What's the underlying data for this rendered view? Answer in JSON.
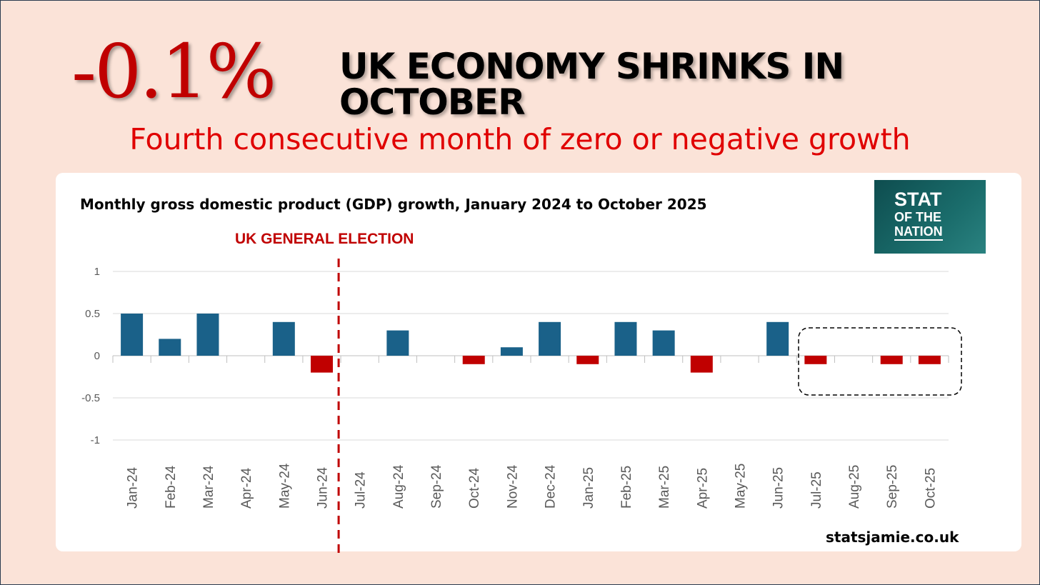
{
  "headline": {
    "value": "-0.1%",
    "title": "UK ECONOMY SHRINKS IN OCTOBER",
    "subtitle": "Fourth consecutive month of zero or negative growth"
  },
  "logo": {
    "line1": "STAT",
    "line2": "OF THE",
    "line3": "NATION"
  },
  "footer": {
    "site": "statsjamie.co.uk"
  },
  "colors": {
    "positive": "#1a6189",
    "negative": "#c00000",
    "background": "#fbe3d8"
  },
  "chart_data": {
    "type": "bar",
    "title": "Monthly gross domestic product (GDP) growth, January 2024 to October 2025",
    "xlabel": "",
    "ylabel": "",
    "ylim": [
      -1,
      1
    ],
    "yticks": [
      1,
      0.5,
      0,
      -0.5,
      -1
    ],
    "ytick_labels": [
      "1",
      "0.5",
      "0",
      "-0.5",
      "-1"
    ],
    "grid": true,
    "categories": [
      "Jan-24",
      "Feb-24",
      "Mar-24",
      "Apr-24",
      "May-24",
      "Jun-24",
      "Jul-24",
      "Aug-24",
      "Sep-24",
      "Oct-24",
      "Nov-24",
      "Dec-24",
      "Jan-25",
      "Feb-25",
      "Mar-25",
      "Apr-25",
      "May-25",
      "Jun-25",
      "Jul-25",
      "Aug-25",
      "Sep-25",
      "Oct-25"
    ],
    "values": [
      0.5,
      0.2,
      0.5,
      0,
      0.4,
      -0.2,
      0,
      0.3,
      0,
      -0.1,
      0.1,
      0.4,
      -0.1,
      0.4,
      0.3,
      -0.2,
      0,
      0.4,
      -0.1,
      0,
      -0.1,
      -0.1
    ],
    "annotations": [
      {
        "text": "UK GENERAL ELECTION",
        "between": [
          "Jun-24",
          "Jul-24"
        ]
      }
    ],
    "highlight": [
      "Jul-25",
      "Oct-25"
    ]
  }
}
